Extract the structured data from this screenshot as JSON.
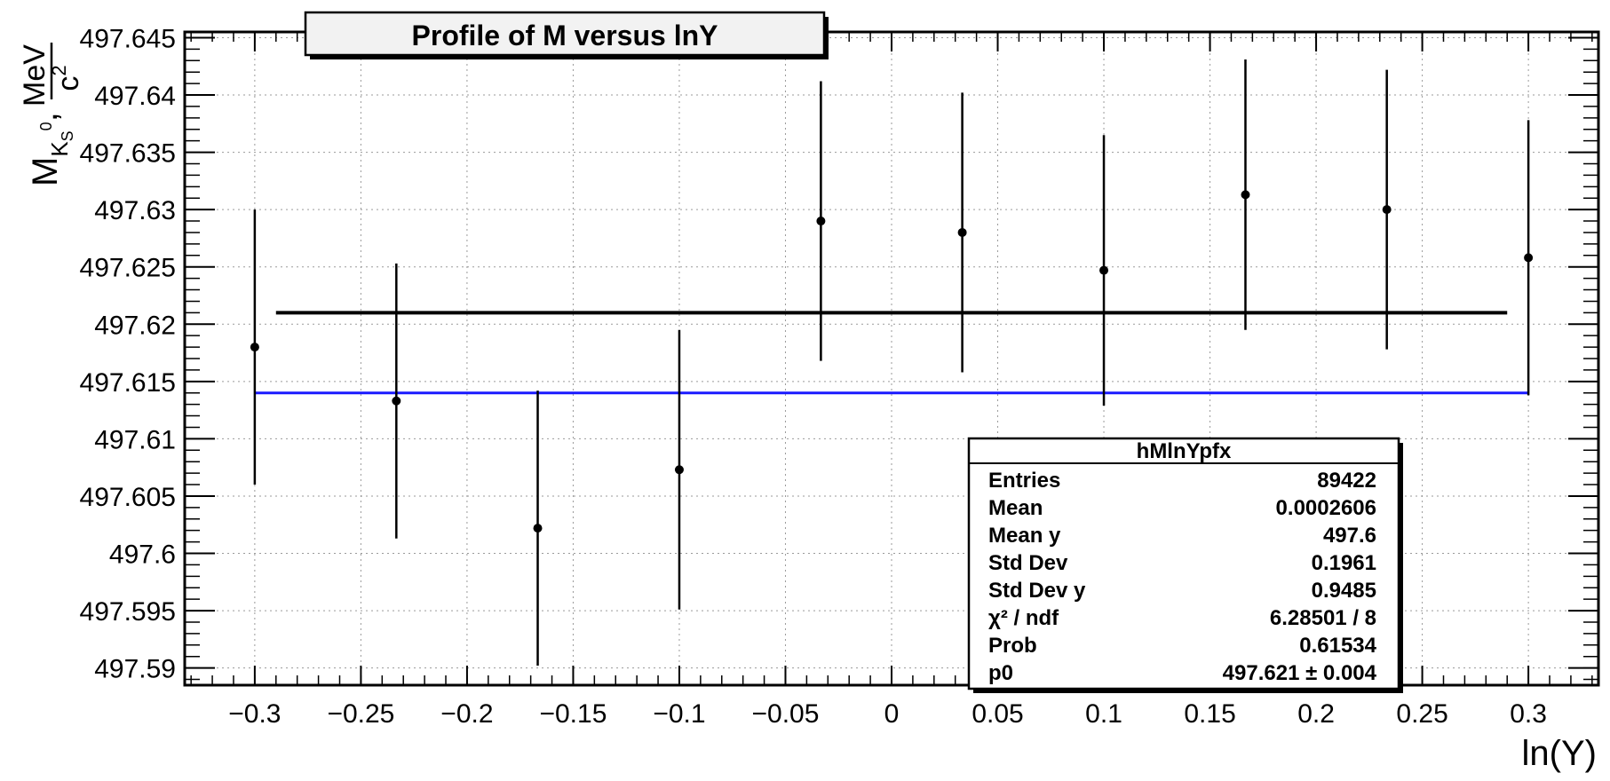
{
  "chart_data": {
    "type": "scatter",
    "title": "Profile of M versus lnY",
    "xlabel": "ln(Y)",
    "ylabel": {
      "main": "M",
      "sub": "K",
      "subsub": "S",
      "sup": "0",
      "unit_num": "MeV",
      "unit_den": "c",
      "unit_den_sup": "2"
    },
    "xlim": [
      -0.333,
      0.333
    ],
    "ylim": [
      497.5885,
      497.6455
    ],
    "x_ticks": [
      -0.3,
      -0.25,
      -0.2,
      -0.15,
      -0.1,
      -0.05,
      0,
      0.05,
      0.1,
      0.15,
      0.2,
      0.25,
      0.3
    ],
    "x_tick_labels": [
      "−0.3",
      "−0.25",
      "−0.2",
      "−0.15",
      "−0.1",
      "−0.05",
      "0",
      "0.05",
      "0.1",
      "0.15",
      "0.2",
      "0.25",
      "0.3"
    ],
    "y_ticks": [
      497.59,
      497.595,
      497.6,
      497.605,
      497.61,
      497.615,
      497.62,
      497.625,
      497.63,
      497.635,
      497.64,
      497.645
    ],
    "y_tick_labels": [
      "497.59",
      "497.595",
      "497.6",
      "497.605",
      "497.61",
      "497.615",
      "497.62",
      "497.625",
      "497.63",
      "497.635",
      "497.64",
      "497.645"
    ],
    "grid": true,
    "series": [
      {
        "x": [
          -0.3,
          -0.2333,
          -0.1667,
          -0.1,
          -0.0333,
          0.0333,
          0.1,
          0.1667,
          0.2333,
          0.3
        ],
        "y": [
          497.618,
          497.6133,
          497.6022,
          497.6073,
          497.629,
          497.628,
          497.6247,
          497.6313,
          497.63,
          497.6258
        ],
        "yerr": [
          0.012,
          0.012,
          0.012,
          0.0122,
          0.0122,
          0.0122,
          0.0118,
          0.0118,
          0.0122,
          0.012
        ]
      }
    ],
    "fit_line": {
      "x": [
        -0.29,
        0.29
      ],
      "y": 497.621,
      "color": "#000000"
    },
    "reference_line": {
      "x": [
        -0.3,
        0.3
      ],
      "y": 497.614,
      "color": "#1a1aff"
    },
    "stats_box": {
      "title": "hMlnYpfx",
      "rows": [
        {
          "label": "Entries",
          "value": "89422"
        },
        {
          "label": "Mean",
          "value": "0.0002606"
        },
        {
          "label": "Mean y",
          "value": "497.6"
        },
        {
          "label": "Std Dev",
          "value": "0.1961"
        },
        {
          "label": "Std Dev y",
          "value": "0.9485"
        },
        {
          "label": "χ² / ndf",
          "value": "6.28501 / 8"
        },
        {
          "label": "Prob",
          "value": "0.61534"
        },
        {
          "label": "p0",
          "value": "497.621 ± 0.004"
        }
      ]
    }
  }
}
